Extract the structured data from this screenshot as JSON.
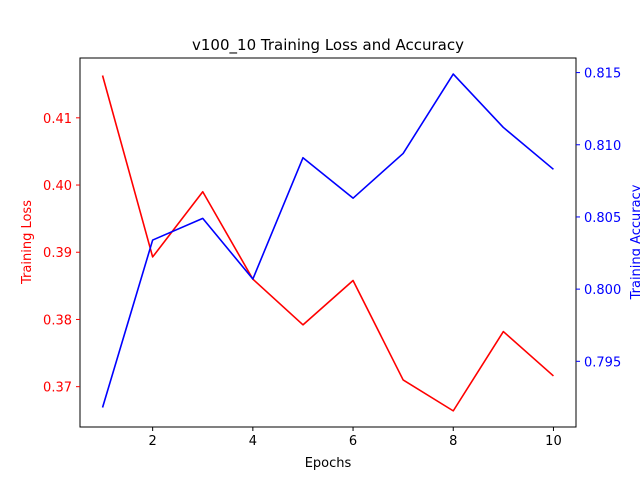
{
  "chart_data": {
    "type": "line",
    "title": "v100_10 Training Loss and Accuracy",
    "xlabel": "Epochs",
    "x": [
      1,
      2,
      3,
      4,
      5,
      6,
      7,
      8,
      9,
      10
    ],
    "xlim": [
      0.55,
      10.45
    ],
    "x_ticks": [
      2,
      4,
      6,
      8,
      10
    ],
    "grid": false,
    "axes": {
      "left": {
        "label": "Training Loss",
        "color": "#ff0000",
        "ylim": [
          0.364,
          0.4189
        ],
        "ticks": [
          0.37,
          0.38,
          0.39,
          0.4,
          0.41
        ],
        "tick_labels": [
          "0.37",
          "0.38",
          "0.39",
          "0.40",
          "0.41"
        ]
      },
      "right": {
        "label": "Training Accuracy",
        "color": "#0000ff",
        "ylim": [
          0.79045,
          0.81601
        ],
        "ticks": [
          0.795,
          0.8,
          0.805,
          0.81,
          0.815
        ],
        "tick_labels": [
          "0.795",
          "0.800",
          "0.805",
          "0.810",
          "0.815"
        ]
      }
    },
    "series": [
      {
        "axis": "left",
        "color": "#ff0000",
        "values": [
          0.4163,
          0.3893,
          0.399,
          0.386,
          0.3792,
          0.3858,
          0.371,
          0.3664,
          0.3782,
          0.3716
        ]
      },
      {
        "axis": "right",
        "color": "#0000ff",
        "values": [
          0.7918,
          0.8034,
          0.8049,
          0.8007,
          0.8091,
          0.8063,
          0.8094,
          0.8149,
          0.8112,
          0.8083
        ]
      }
    ]
  }
}
